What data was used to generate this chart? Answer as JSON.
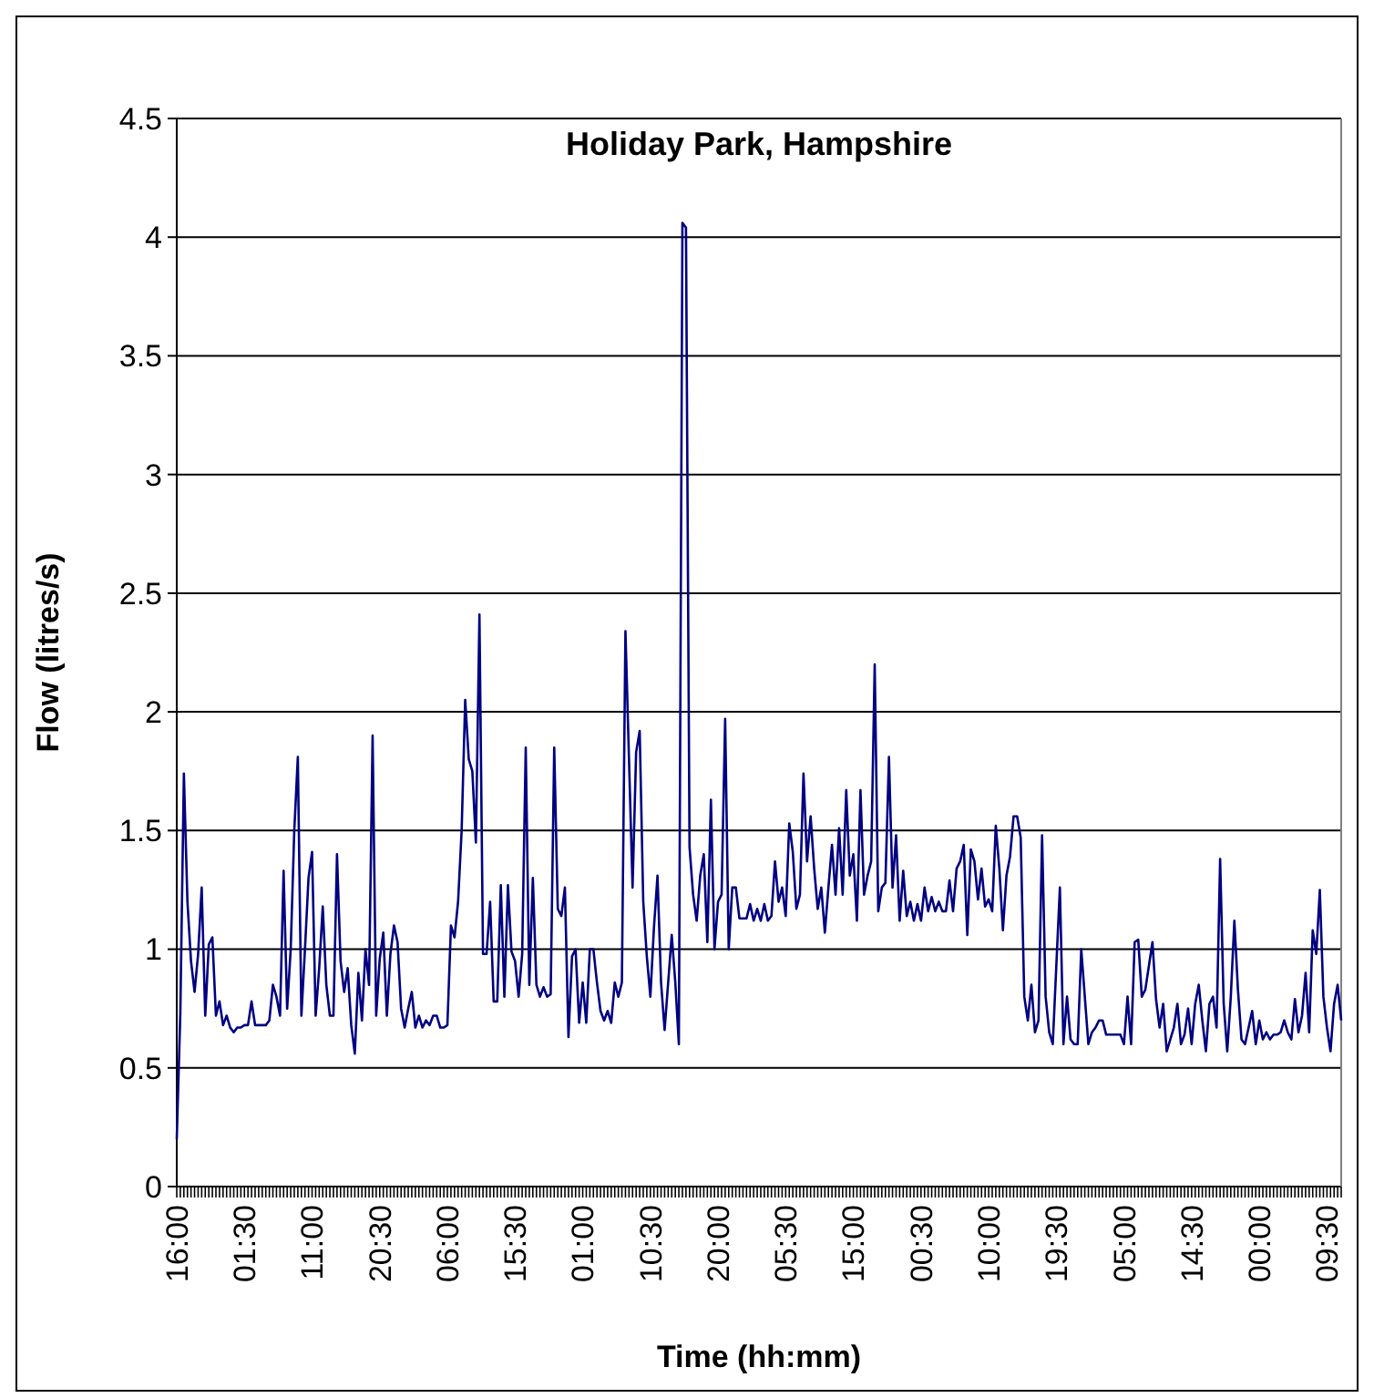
{
  "chart_data": {
    "type": "line",
    "title": "Holiday Park, Hampshire",
    "xlabel": "Time (hh:mm)",
    "ylabel": "Flow (litres/s)",
    "categories": [
      "16:00",
      null,
      null,
      null,
      null,
      null,
      null,
      null,
      null,
      null,
      null,
      null,
      null,
      null,
      null,
      null,
      null,
      null,
      null,
      "01:30",
      null,
      null,
      null,
      null,
      null,
      null,
      null,
      null,
      null,
      null,
      null,
      null,
      null,
      null,
      null,
      null,
      null,
      null,
      "11:00",
      null,
      null,
      null,
      null,
      null,
      null,
      null,
      null,
      null,
      null,
      null,
      null,
      null,
      null,
      null,
      null,
      null,
      null,
      "20:30",
      null,
      null,
      null,
      null,
      null,
      null,
      null,
      null,
      null,
      null,
      null,
      null,
      null,
      null,
      null,
      null,
      null,
      null,
      "06:00",
      null,
      null,
      null,
      null,
      null,
      null,
      null,
      null,
      null,
      null,
      null,
      null,
      null,
      null,
      null,
      null,
      null,
      null,
      "15:30",
      null,
      null,
      null,
      null,
      null,
      null,
      null,
      null,
      null,
      null,
      null,
      null,
      null,
      null,
      null,
      null,
      null,
      null,
      "01:00",
      null,
      null,
      null,
      null,
      null,
      null,
      null,
      null,
      null,
      null,
      null,
      null,
      null,
      null,
      null,
      null,
      null,
      null,
      "10:30",
      null,
      null,
      null,
      null,
      null,
      null,
      null,
      null,
      null,
      null,
      null,
      null,
      null,
      null,
      null,
      null,
      null,
      null,
      "20:00",
      null,
      null,
      null,
      null,
      null,
      null,
      null,
      null,
      null,
      null,
      null,
      null,
      null,
      null,
      null,
      null,
      null,
      null,
      "05:30",
      null,
      null,
      null,
      null,
      null,
      null,
      null,
      null,
      null,
      null,
      null,
      null,
      null,
      null,
      null,
      null,
      null,
      null,
      "15:00",
      null,
      null,
      null,
      null,
      null,
      null,
      null,
      null,
      null,
      null,
      null,
      null,
      null,
      null,
      null,
      null,
      null,
      null,
      "00:30",
      null,
      null,
      null,
      null,
      null,
      null,
      null,
      null,
      null,
      null,
      null,
      null,
      null,
      null,
      null,
      null,
      null,
      null,
      "10:00",
      null,
      null,
      null,
      null,
      null,
      null,
      null,
      null,
      null,
      null,
      null,
      null,
      null,
      null,
      null,
      null,
      null,
      null,
      "19:30",
      null,
      null,
      null,
      null,
      null,
      null,
      null,
      null,
      null,
      null,
      null,
      null,
      null,
      null,
      null,
      null,
      null,
      null,
      "05:00",
      null,
      null,
      null,
      null,
      null,
      null,
      null,
      null,
      null,
      null,
      null,
      null,
      null,
      null,
      null,
      null,
      null,
      null,
      "14:30",
      null,
      null,
      null,
      null,
      null,
      null,
      null,
      null,
      null,
      null,
      null,
      null,
      null,
      null,
      null,
      null,
      null,
      null,
      "00:00",
      null,
      null,
      null,
      null,
      null,
      null,
      null,
      null,
      null,
      null,
      null,
      null,
      null,
      null,
      null,
      null,
      null,
      null,
      "09:30",
      null,
      null,
      null,
      null
    ],
    "ylim": [
      0,
      4.5
    ],
    "yticks": [
      0,
      0.5,
      1,
      1.5,
      2,
      2.5,
      3,
      3.5,
      4,
      4.5
    ],
    "grid": "y",
    "marker": "none",
    "line_style": "solid",
    "series": [
      {
        "color": "#000080",
        "values": [
          0.2,
          0.73,
          1.74,
          1.2,
          0.95,
          0.82,
          0.98,
          1.26,
          0.72,
          1.02,
          1.05,
          0.72,
          0.78,
          0.68,
          0.72,
          0.67,
          0.65,
          0.67,
          0.67,
          0.68,
          0.68,
          0.78,
          0.68,
          0.68,
          0.68,
          0.68,
          0.7,
          0.85,
          0.8,
          0.72,
          1.33,
          0.75,
          1.0,
          1.5,
          1.81,
          0.72,
          1.0,
          1.3,
          1.41,
          0.72,
          0.92,
          1.18,
          0.85,
          0.72,
          0.72,
          1.4,
          0.95,
          0.82,
          0.92,
          0.68,
          0.56,
          0.9,
          0.7,
          1.0,
          0.85,
          1.9,
          0.72,
          0.96,
          1.07,
          0.72,
          0.98,
          1.1,
          1.03,
          0.75,
          0.67,
          0.75,
          0.82,
          0.67,
          0.72,
          0.67,
          0.7,
          0.68,
          0.72,
          0.72,
          0.67,
          0.67,
          0.68,
          1.1,
          1.05,
          1.2,
          1.5,
          2.05,
          1.8,
          1.75,
          1.45,
          2.41,
          0.98,
          0.98,
          1.2,
          0.78,
          0.78,
          1.27,
          0.8,
          1.27,
          0.99,
          0.95,
          0.8,
          0.98,
          1.85,
          0.85,
          1.3,
          0.85,
          0.8,
          0.84,
          0.8,
          0.81,
          1.85,
          1.17,
          1.14,
          1.26,
          0.63,
          0.97,
          1.0,
          0.69,
          0.86,
          0.69,
          1.0,
          1.0,
          0.86,
          0.74,
          0.7,
          0.74,
          0.69,
          0.86,
          0.8,
          0.86,
          2.34,
          1.8,
          1.26,
          1.83,
          1.92,
          1.2,
          0.97,
          0.8,
          1.09,
          1.31,
          0.86,
          0.66,
          0.86,
          1.06,
          0.86,
          0.6,
          4.06,
          4.04,
          1.43,
          1.23,
          1.12,
          1.31,
          1.4,
          1.03,
          1.63,
          1.0,
          1.2,
          1.23,
          1.97,
          1.0,
          1.26,
          1.26,
          1.13,
          1.13,
          1.13,
          1.19,
          1.12,
          1.17,
          1.12,
          1.19,
          1.12,
          1.14,
          1.37,
          1.2,
          1.26,
          1.14,
          1.53,
          1.41,
          1.17,
          1.23,
          1.74,
          1.37,
          1.56,
          1.34,
          1.17,
          1.26,
          1.07,
          1.26,
          1.44,
          1.23,
          1.51,
          1.23,
          1.67,
          1.31,
          1.4,
          1.12,
          1.67,
          1.23,
          1.31,
          1.37,
          2.2,
          1.16,
          1.26,
          1.28,
          1.81,
          1.26,
          1.48,
          1.12,
          1.33,
          1.14,
          1.2,
          1.12,
          1.19,
          1.12,
          1.26,
          1.16,
          1.22,
          1.16,
          1.2,
          1.16,
          1.16,
          1.29,
          1.16,
          1.34,
          1.37,
          1.44,
          1.06,
          1.42,
          1.37,
          1.21,
          1.34,
          1.18,
          1.21,
          1.16,
          1.52,
          1.34,
          1.08,
          1.31,
          1.39,
          1.56,
          1.56,
          1.47,
          0.8,
          0.7,
          0.85,
          0.65,
          0.7,
          1.48,
          0.8,
          0.65,
          0.6,
          0.93,
          1.26,
          0.6,
          0.8,
          0.62,
          0.6,
          0.6,
          1.0,
          0.8,
          0.6,
          0.65,
          0.67,
          0.7,
          0.7,
          0.64,
          0.64,
          0.64,
          0.64,
          0.64,
          0.6,
          0.8,
          0.6,
          1.03,
          1.04,
          0.8,
          0.83,
          0.93,
          1.03,
          0.79,
          0.67,
          0.77,
          0.57,
          0.62,
          0.67,
          0.77,
          0.6,
          0.64,
          0.75,
          0.6,
          0.77,
          0.85,
          0.7,
          0.57,
          0.77,
          0.8,
          0.67,
          1.38,
          0.77,
          0.57,
          0.8,
          1.12,
          0.83,
          0.62,
          0.6,
          0.67,
          0.74,
          0.6,
          0.7,
          0.62,
          0.65,
          0.62,
          0.64,
          0.64,
          0.65,
          0.7,
          0.65,
          0.62,
          0.79,
          0.65,
          0.72,
          0.9,
          0.65,
          1.08,
          0.98,
          1.25,
          0.8,
          0.67,
          0.57,
          0.77,
          0.85,
          0.7
        ]
      }
    ]
  }
}
